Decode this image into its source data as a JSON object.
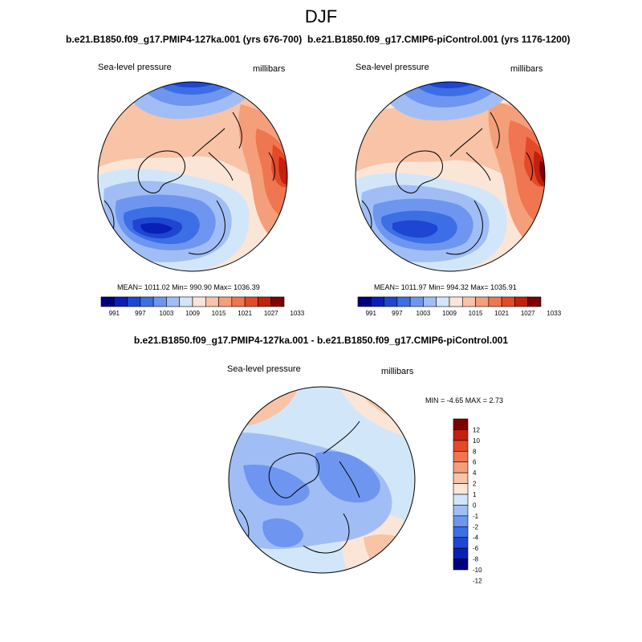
{
  "season": "DJF",
  "colors": {
    "abs_scale": [
      "#00007f",
      "#0a1fb8",
      "#1e46d2",
      "#3c6ee6",
      "#6e96f0",
      "#a0bef5",
      "#d2e6fa",
      "#fbe5d6",
      "#f8c3a6",
      "#f59e7a",
      "#ef7650",
      "#e44a28",
      "#c51f0e",
      "#7f0000"
    ],
    "diff_scale": [
      "#00007f",
      "#0a1fb8",
      "#1e46d2",
      "#3c6ee6",
      "#6e96f0",
      "#a0bef5",
      "#d2e6fa",
      "#fbe5d6",
      "#f8c3a6",
      "#f59e7a",
      "#ef7650",
      "#e44a28",
      "#c51f0e",
      "#7f0000"
    ]
  },
  "panels": [
    {
      "title": "b.e21.B1850.f09_g17.PMIP4-127ka.001 (yrs 676-700)",
      "variable": "Sea-level pressure",
      "units": "millibars",
      "stats": "MEAN= 1011.02  Min= 990.90  Max= 1036.39",
      "colorbar_labels": [
        "991",
        "997",
        "1003",
        "1009",
        "1015",
        "1021",
        "1027",
        "1033"
      ]
    },
    {
      "title": "b.e21.B1850.f09_g17.CMIP6-piControl.001 (yrs 1176-1200)",
      "variable": "Sea-level pressure",
      "units": "millibars",
      "stats": "MEAN= 1011.97  Min= 994.32  Max= 1035.91",
      "colorbar_labels": [
        "991",
        "997",
        "1003",
        "1009",
        "1015",
        "1021",
        "1027",
        "1033"
      ]
    }
  ],
  "diff_panel": {
    "title": "b.e21.B1850.f09_g17.PMIP4-127ka.001 - b.e21.B1850.f09_g17.CMIP6-piControl.001",
    "variable": "Sea-level pressure",
    "units": "millibars",
    "stats": "MIN =  -4.65 MAX =   2.73",
    "colorbar_labels": [
      "12",
      "10",
      "8",
      "6",
      "4",
      "2",
      "1",
      "0",
      "-1",
      "-2",
      "-4",
      "-6",
      "-8",
      "-10",
      "-12"
    ]
  }
}
